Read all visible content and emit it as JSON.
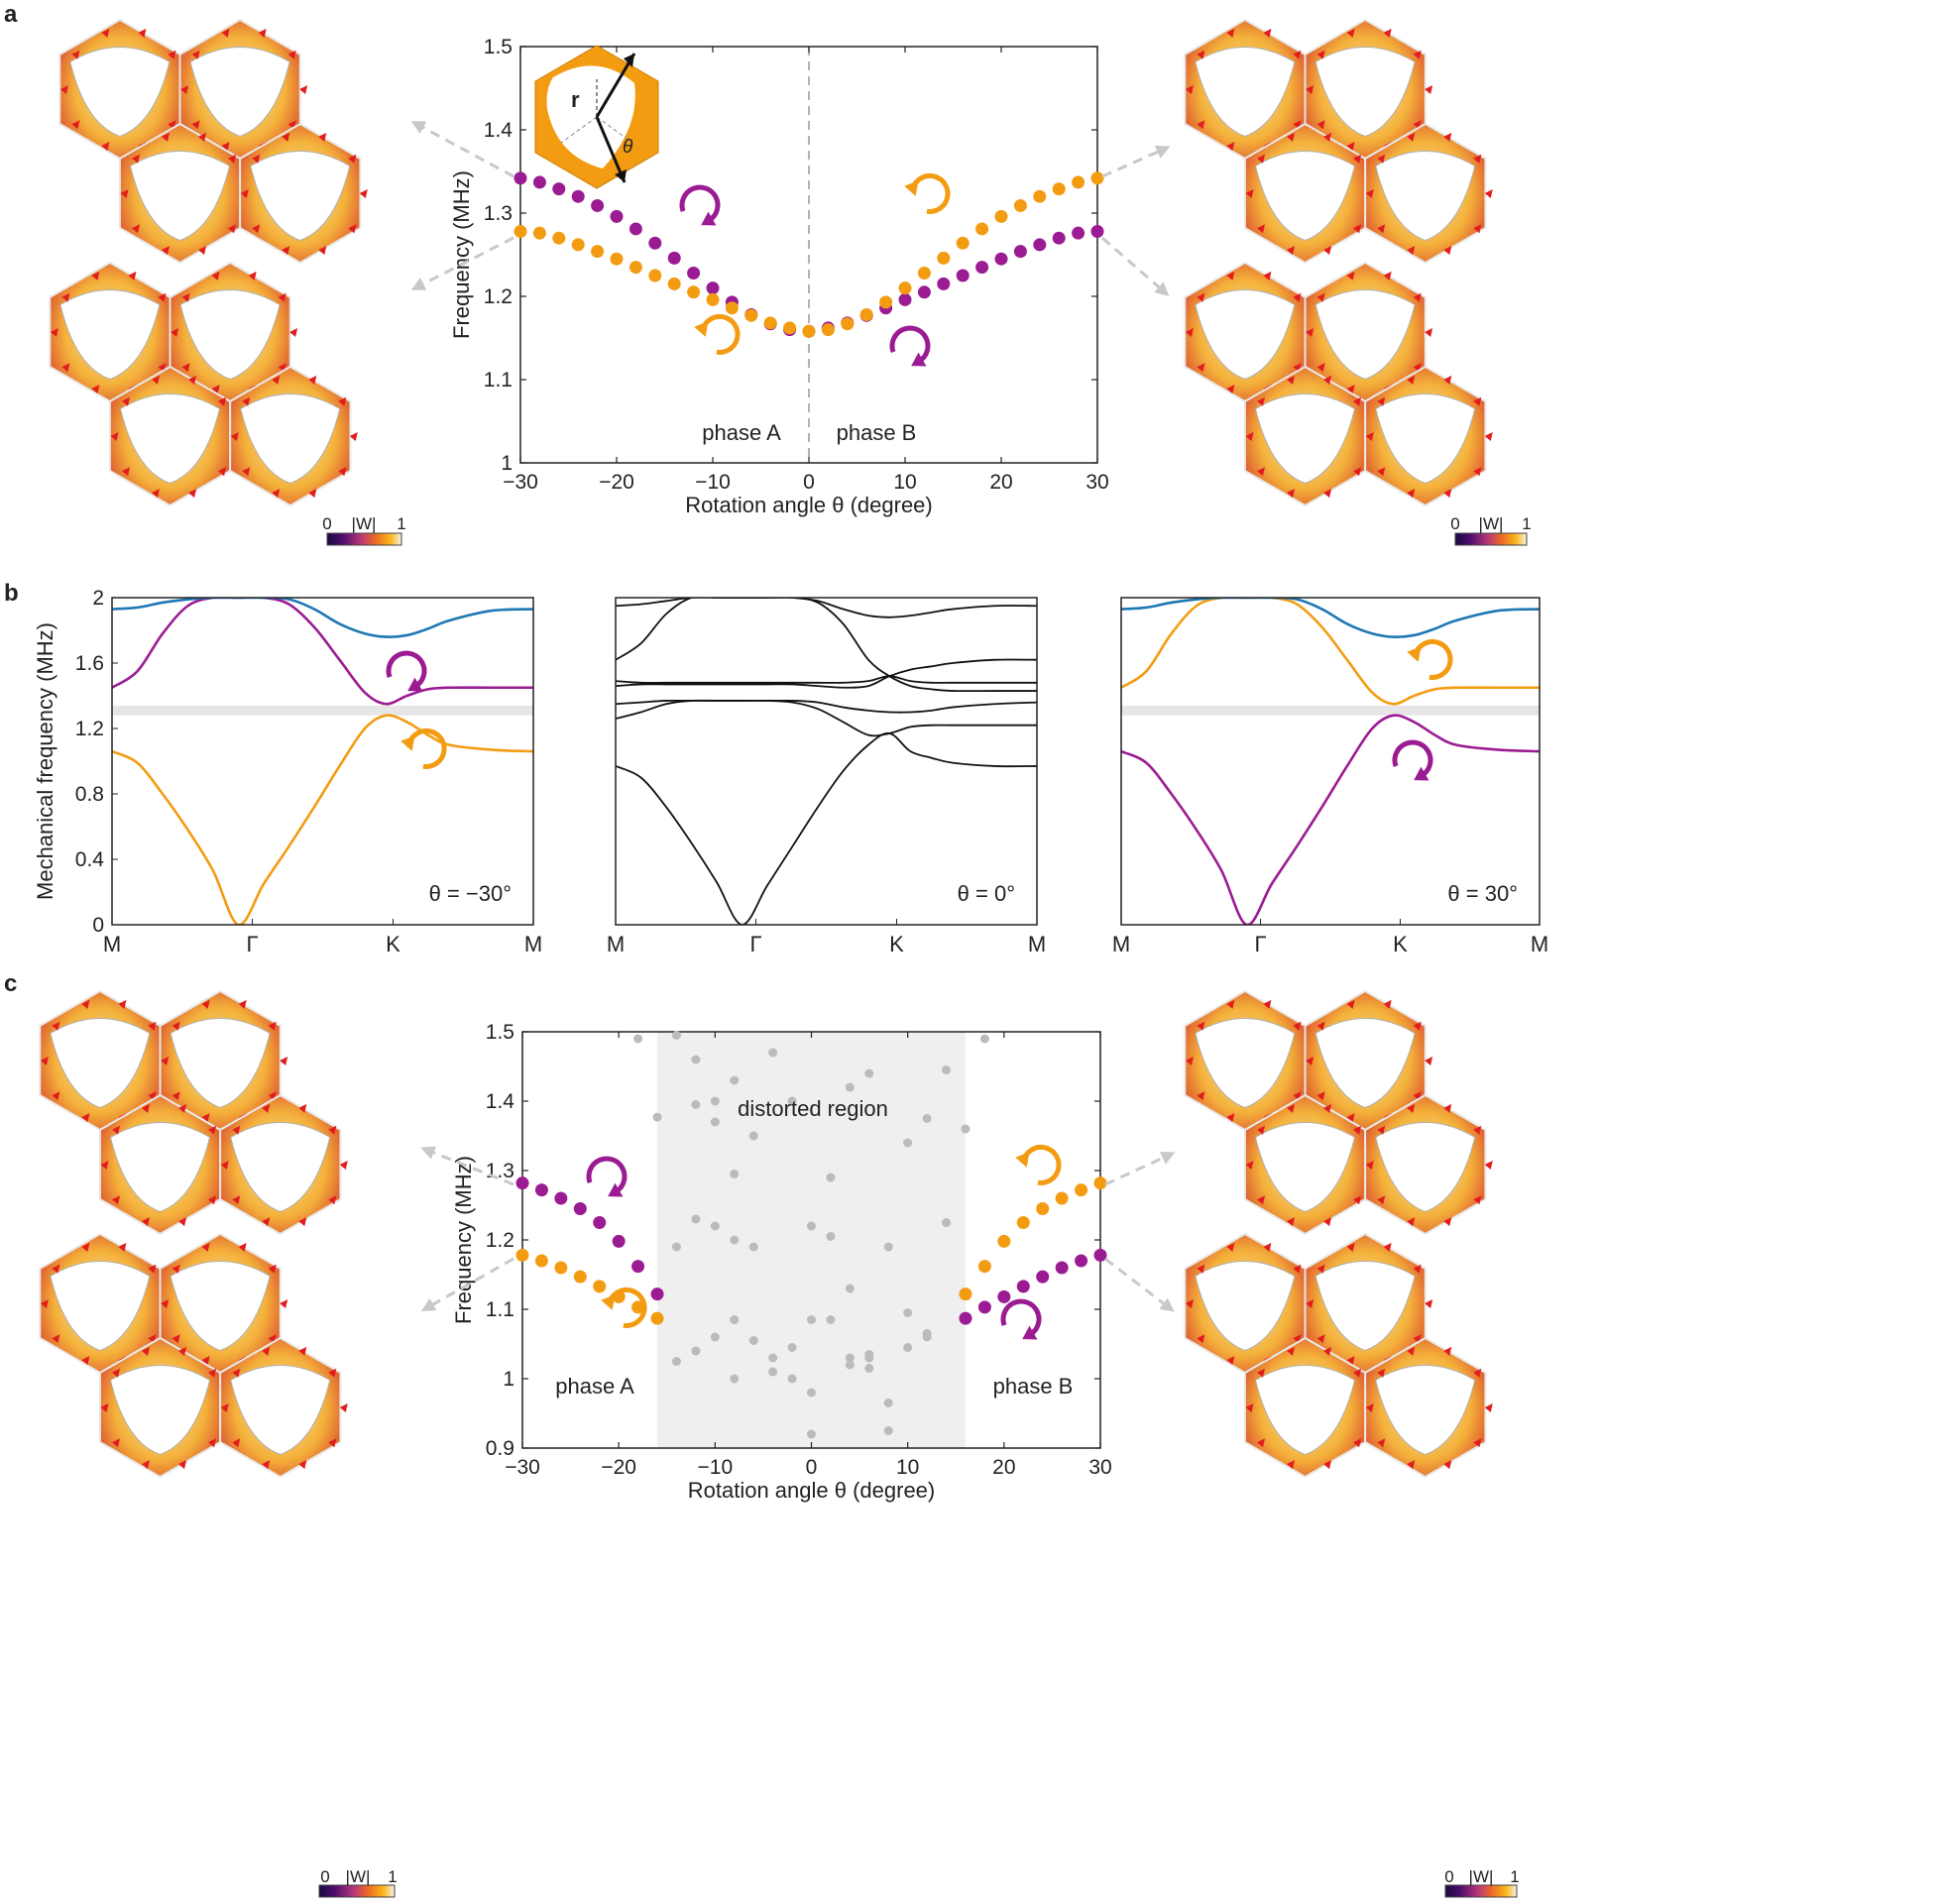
{
  "panel_labels": [
    "a",
    "b",
    "c"
  ],
  "colors": {
    "purple": "#9B1B93",
    "orange": "#F39C12",
    "blue": "#1F78B4",
    "black": "#111111",
    "gray_point": "#BBBBBB",
    "gray_band": "#E6E6E6",
    "region": "#EFEFEF"
  },
  "colorbar": {
    "label": "|W|",
    "min": "0",
    "max": "1"
  },
  "inset_labels": {
    "r": "r",
    "theta": "θ"
  },
  "mode_field_icon": "hexagonal-unit-cell-field-map",
  "chart_data": [
    {
      "id": "a",
      "type": "scatter",
      "xlabel": "Rotation angle θ (degree)",
      "ylabel": "Frequency (MHz)",
      "xlim": [
        -30,
        30
      ],
      "ylim": [
        1.0,
        1.5
      ],
      "xticks": [
        "−30",
        "−20",
        "−10",
        "0",
        "10",
        "20",
        "30"
      ],
      "yticks": [
        "1",
        "1.1",
        "1.2",
        "1.3",
        "1.4",
        "1.5"
      ],
      "annotations": [
        "phase A",
        "phase B"
      ],
      "series": [
        {
          "color": "purple",
          "x": [
            -30,
            -28,
            -26,
            -24,
            -22,
            -20,
            -18,
            -16,
            -14,
            -12,
            -10,
            -8,
            -6,
            -4,
            -2,
            0,
            2,
            4,
            6,
            8,
            10,
            12,
            14,
            16,
            18,
            20,
            22,
            24,
            26,
            28,
            30
          ],
          "y": [
            1.342,
            1.337,
            1.329,
            1.32,
            1.309,
            1.296,
            1.281,
            1.264,
            1.246,
            1.228,
            1.21,
            1.193,
            1.178,
            1.167,
            1.16,
            1.158,
            1.162,
            1.168,
            1.177,
            1.186,
            1.196,
            1.205,
            1.215,
            1.225,
            1.235,
            1.245,
            1.254,
            1.262,
            1.27,
            1.276,
            1.278
          ]
        },
        {
          "color": "orange",
          "x": [
            -30,
            -28,
            -26,
            -24,
            -22,
            -20,
            -18,
            -16,
            -14,
            -12,
            -10,
            -8,
            -6,
            -4,
            -2,
            0,
            2,
            4,
            6,
            8,
            10,
            12,
            14,
            16,
            18,
            20,
            22,
            24,
            26,
            28,
            30
          ],
          "y": [
            1.278,
            1.276,
            1.27,
            1.262,
            1.254,
            1.245,
            1.235,
            1.225,
            1.215,
            1.205,
            1.196,
            1.186,
            1.177,
            1.168,
            1.162,
            1.158,
            1.16,
            1.167,
            1.178,
            1.193,
            1.21,
            1.228,
            1.246,
            1.264,
            1.281,
            1.296,
            1.309,
            1.32,
            1.329,
            1.337,
            1.342
          ]
        }
      ]
    },
    {
      "id": "b1",
      "type": "line",
      "ylabel": "Mechanical frequency (MHz)",
      "ylim": [
        0,
        2.0
      ],
      "yticks": [
        "0",
        "0.4",
        "0.8",
        "1.2",
        "1.6",
        "2"
      ],
      "xticks": [
        "M",
        "Γ",
        "K",
        "M"
      ],
      "annotation": "θ = −30°",
      "band_gap": [
        1.28,
        1.34
      ],
      "series": [
        {
          "color": "orange",
          "x": [
            0,
            0.06,
            0.12,
            0.18,
            0.24,
            0.3,
            0.36,
            0.42,
            0.48,
            0.54,
            0.6,
            0.65,
            0.7,
            0.75,
            0.8,
            0.9,
            1.0
          ],
          "y": [
            1.06,
            0.99,
            0.8,
            0.58,
            0.33,
            0.0,
            0.25,
            0.48,
            0.72,
            0.97,
            1.2,
            1.28,
            1.24,
            1.16,
            1.1,
            1.07,
            1.06
          ]
        },
        {
          "color": "purple",
          "x": [
            0,
            0.06,
            0.12,
            0.18,
            0.24,
            0.3,
            0.36,
            0.42,
            0.48,
            0.54,
            0.6,
            0.65,
            0.7,
            0.75,
            0.8,
            0.9,
            1.0
          ],
          "y": [
            1.45,
            1.55,
            1.78,
            1.95,
            2.0,
            2.0,
            2.0,
            1.96,
            1.82,
            1.62,
            1.42,
            1.35,
            1.4,
            1.44,
            1.45,
            1.45,
            1.45
          ]
        },
        {
          "color": "blue",
          "x": [
            0,
            0.06,
            0.12,
            0.18,
            0.24,
            0.3,
            0.36,
            0.42,
            0.48,
            0.54,
            0.6,
            0.65,
            0.7,
            0.75,
            0.8,
            0.9,
            1.0
          ],
          "y": [
            1.93,
            1.94,
            1.97,
            1.99,
            2.0,
            2.0,
            2.0,
            1.99,
            1.93,
            1.84,
            1.78,
            1.76,
            1.77,
            1.81,
            1.86,
            1.92,
            1.93
          ]
        }
      ]
    },
    {
      "id": "b2",
      "type": "line",
      "xticks": [
        "M",
        "Γ",
        "K",
        "M"
      ],
      "annotation": "θ = 0°",
      "ylim": [
        0,
        2.0
      ],
      "series": [
        {
          "color": "black",
          "x": [
            0,
            0.06,
            0.12,
            0.18,
            0.24,
            0.3,
            0.36,
            0.42,
            0.48,
            0.54,
            0.6,
            0.65,
            0.7,
            0.75,
            0.8,
            0.9,
            1.0
          ],
          "y": [
            0.97,
            0.9,
            0.72,
            0.5,
            0.26,
            0.0,
            0.24,
            0.48,
            0.72,
            0.94,
            1.1,
            1.17,
            1.06,
            1.02,
            0.99,
            0.97,
            0.97
          ]
        },
        {
          "color": "black",
          "x": [
            0,
            0.06,
            0.12,
            0.18,
            0.24,
            0.3,
            0.36,
            0.42,
            0.48,
            0.54,
            0.6,
            0.65,
            0.7,
            0.75,
            0.8,
            0.9,
            1.0
          ],
          "y": [
            1.26,
            1.3,
            1.35,
            1.37,
            1.37,
            1.37,
            1.37,
            1.36,
            1.32,
            1.24,
            1.16,
            1.17,
            1.21,
            1.22,
            1.22,
            1.22,
            1.22
          ]
        },
        {
          "color": "black",
          "x": [
            0,
            0.06,
            0.12,
            0.18,
            0.24,
            0.3,
            0.36,
            0.42,
            0.48,
            0.54,
            0.6,
            0.65,
            0.7,
            0.75,
            0.8,
            0.9,
            1.0
          ],
          "y": [
            1.35,
            1.36,
            1.37,
            1.37,
            1.37,
            1.37,
            1.37,
            1.37,
            1.36,
            1.33,
            1.31,
            1.3,
            1.3,
            1.31,
            1.33,
            1.35,
            1.36
          ]
        },
        {
          "color": "black",
          "x": [
            0,
            0.06,
            0.12,
            0.18,
            0.24,
            0.3,
            0.36,
            0.42,
            0.48,
            0.54,
            0.6,
            0.65,
            0.7,
            0.75,
            0.8,
            0.9,
            1.0
          ],
          "y": [
            1.49,
            1.48,
            1.48,
            1.48,
            1.48,
            1.48,
            1.48,
            1.48,
            1.48,
            1.48,
            1.49,
            1.52,
            1.49,
            1.48,
            1.48,
            1.48,
            1.48
          ]
        },
        {
          "color": "black",
          "x": [
            0,
            0.06,
            0.12,
            0.18,
            0.24,
            0.3,
            0.36,
            0.42,
            0.48,
            0.54,
            0.6,
            0.65,
            0.7,
            0.75,
            0.8,
            0.9,
            1.0
          ],
          "y": [
            1.46,
            1.47,
            1.47,
            1.47,
            1.47,
            1.47,
            1.47,
            1.47,
            1.46,
            1.45,
            1.46,
            1.52,
            1.56,
            1.58,
            1.6,
            1.62,
            1.62
          ]
        },
        {
          "color": "black",
          "x": [
            0,
            0.06,
            0.12,
            0.18,
            0.24,
            0.3,
            0.36,
            0.42,
            0.48,
            0.54,
            0.6,
            0.65,
            0.7,
            0.75,
            0.8,
            0.9,
            1.0
          ],
          "y": [
            1.62,
            1.72,
            1.9,
            2.0,
            2.0,
            2.0,
            2.0,
            2.0,
            1.97,
            1.84,
            1.62,
            1.52,
            1.46,
            1.44,
            1.43,
            1.43,
            1.43
          ]
        },
        {
          "color": "black",
          "x": [
            0,
            0.06,
            0.12,
            0.18,
            0.24,
            0.3,
            0.36,
            0.42,
            0.48,
            0.54,
            0.6,
            0.65,
            0.7,
            0.75,
            0.8,
            0.9,
            1.0
          ],
          "y": [
            1.95,
            1.96,
            1.98,
            2.0,
            2.0,
            2.0,
            2.0,
            2.0,
            1.98,
            1.93,
            1.89,
            1.88,
            1.89,
            1.91,
            1.93,
            1.95,
            1.95
          ]
        }
      ]
    },
    {
      "id": "b3",
      "type": "line",
      "xticks": [
        "M",
        "Γ",
        "K",
        "M"
      ],
      "annotation": "θ = 30°",
      "ylim": [
        0,
        2.0
      ],
      "band_gap": [
        1.28,
        1.34
      ],
      "series": [
        {
          "color": "purple",
          "x": [
            0,
            0.06,
            0.12,
            0.18,
            0.24,
            0.3,
            0.36,
            0.42,
            0.48,
            0.54,
            0.6,
            0.65,
            0.7,
            0.75,
            0.8,
            0.9,
            1.0
          ],
          "y": [
            1.06,
            0.99,
            0.8,
            0.58,
            0.33,
            0.0,
            0.25,
            0.48,
            0.72,
            0.97,
            1.2,
            1.28,
            1.24,
            1.16,
            1.1,
            1.07,
            1.06
          ]
        },
        {
          "color": "orange",
          "x": [
            0,
            0.06,
            0.12,
            0.18,
            0.24,
            0.3,
            0.36,
            0.42,
            0.48,
            0.54,
            0.6,
            0.65,
            0.7,
            0.75,
            0.8,
            0.9,
            1.0
          ],
          "y": [
            1.45,
            1.55,
            1.78,
            1.95,
            2.0,
            2.0,
            2.0,
            1.96,
            1.82,
            1.62,
            1.42,
            1.35,
            1.4,
            1.44,
            1.45,
            1.45,
            1.45
          ]
        },
        {
          "color": "blue",
          "x": [
            0,
            0.06,
            0.12,
            0.18,
            0.24,
            0.3,
            0.36,
            0.42,
            0.48,
            0.54,
            0.6,
            0.65,
            0.7,
            0.75,
            0.8,
            0.9,
            1.0
          ],
          "y": [
            1.93,
            1.94,
            1.97,
            1.99,
            2.0,
            2.0,
            2.0,
            1.99,
            1.93,
            1.84,
            1.78,
            1.76,
            1.77,
            1.81,
            1.86,
            1.92,
            1.93
          ]
        }
      ]
    },
    {
      "id": "c",
      "type": "scatter",
      "xlabel": "Rotation angle θ (degree)",
      "ylabel": "Frequency (MHz)",
      "xlim": [
        -30,
        30
      ],
      "ylim": [
        0.9,
        1.5
      ],
      "xticks": [
        "−30",
        "−20",
        "−10",
        "0",
        "10",
        "20",
        "30"
      ],
      "yticks": [
        "0.9",
        "1",
        "1.1",
        "1.2",
        "1.3",
        "1.4",
        "1.5"
      ],
      "region": [
        -16,
        16
      ],
      "annotations": [
        "distorted region",
        "phase A",
        "phase B"
      ],
      "series": [
        {
          "color": "purple",
          "x": [
            -30,
            -28,
            -26,
            -24,
            -22,
            -20,
            -18,
            -16,
            16,
            18,
            20,
            22,
            24,
            26,
            28,
            30
          ],
          "y": [
            1.282,
            1.272,
            1.26,
            1.245,
            1.225,
            1.198,
            1.162,
            1.122,
            1.087,
            1.103,
            1.118,
            1.133,
            1.147,
            1.16,
            1.17,
            1.178
          ]
        },
        {
          "color": "orange",
          "x": [
            -30,
            -28,
            -26,
            -24,
            -22,
            -20,
            -18,
            -16,
            16,
            18,
            20,
            22,
            24,
            26,
            28,
            30
          ],
          "y": [
            1.178,
            1.17,
            1.16,
            1.147,
            1.133,
            1.118,
            1.103,
            1.087,
            1.122,
            1.162,
            1.198,
            1.225,
            1.245,
            1.26,
            1.272,
            1.282
          ]
        },
        {
          "color": "gray_point",
          "x": [
            -18,
            -16,
            -14,
            -14,
            -14,
            -12,
            -12,
            -12,
            -12,
            -10,
            -10,
            -10,
            -10,
            -8,
            -8,
            -8,
            -8,
            -8,
            -6,
            -6,
            -6,
            -4,
            -4,
            -4,
            -2,
            -2,
            -2,
            0,
            0,
            0,
            0,
            2,
            2,
            2,
            4,
            4,
            4,
            4,
            6,
            6,
            6,
            6,
            8,
            8,
            8,
            10,
            10,
            10,
            12,
            12,
            12,
            14,
            14,
            16,
            18
          ],
          "y": [
            1.49,
            1.377,
            1.495,
            1.19,
            1.025,
            1.46,
            1.395,
            1.23,
            1.04,
            1.4,
            1.37,
            1.22,
            1.06,
            1.43,
            1.295,
            1.2,
            1.085,
            1.0,
            1.35,
            1.19,
            1.055,
            1.47,
            1.03,
            1.01,
            1.0,
            1.4,
            1.045,
            1.22,
            1.085,
            0.98,
            0.92,
            1.29,
            1.205,
            1.085,
            1.42,
            1.13,
            1.02,
            1.03,
            1.44,
            1.035,
            1.03,
            1.015,
            1.19,
            0.965,
            0.925,
            1.34,
            1.095,
            1.045,
            1.375,
            1.065,
            1.06,
            1.445,
            1.225,
            1.36,
            1.49
          ]
        }
      ]
    }
  ]
}
